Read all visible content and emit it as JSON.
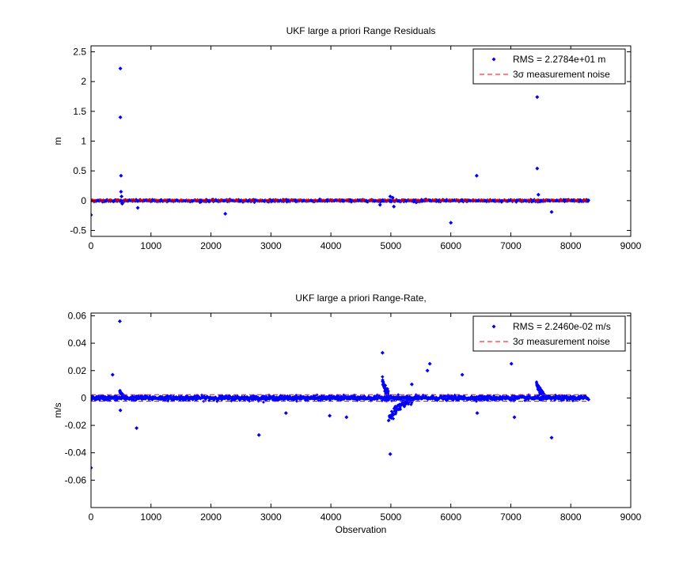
{
  "chart_data": [
    {
      "type": "scatter",
      "title": "UKF large a priori Range Residuals",
      "xlabel": "",
      "ylabel": "m",
      "xlim": [
        0,
        9000
      ],
      "ylim": [
        -0.6,
        2.6
      ],
      "xticks": [
        0,
        1000,
        2000,
        3000,
        4000,
        5000,
        6000,
        7000,
        8000,
        9000
      ],
      "xtick_labels": [
        "0",
        "1000",
        "2000",
        "3000",
        "4000",
        "5000",
        "6000",
        "7000",
        "8000",
        "9000"
      ],
      "yticks": [
        -0.5,
        0,
        0.5,
        1,
        1.5,
        2,
        2.5
      ],
      "ytick_labels": [
        "-0.5",
        "0",
        "0.5",
        "1",
        "1.5",
        "2",
        "2.5"
      ],
      "grid": false,
      "legend_position": "top-right",
      "n_points_approx": 8300,
      "series": [
        {
          "name": "RMS = 2.2784e+01 m",
          "kind": "points",
          "color": "#0000ff",
          "base_band": 0.02,
          "x_range": [
            0,
            8300
          ],
          "outliers": [
            {
              "x": 0,
              "y": -0.24
            },
            {
              "x": 490,
              "y": 2.22
            },
            {
              "x": 490,
              "y": 1.4
            },
            {
              "x": 500,
              "y": 0.42
            },
            {
              "x": 500,
              "y": 0.15
            },
            {
              "x": 510,
              "y": 0.07
            },
            {
              "x": 520,
              "y": -0.05
            },
            {
              "x": 780,
              "y": -0.12
            },
            {
              "x": 2240,
              "y": -0.22
            },
            {
              "x": 4820,
              "y": -0.07
            },
            {
              "x": 4990,
              "y": 0.07
            },
            {
              "x": 5030,
              "y": 0.05
            },
            {
              "x": 5050,
              "y": -0.1
            },
            {
              "x": 6000,
              "y": -0.37
            },
            {
              "x": 6430,
              "y": 0.42
            },
            {
              "x": 7440,
              "y": 1.74
            },
            {
              "x": 7440,
              "y": 0.54
            },
            {
              "x": 7460,
              "y": 0.1
            },
            {
              "x": 7680,
              "y": -0.19
            }
          ]
        },
        {
          "name": "3σ measurement noise",
          "kind": "dashed-lines",
          "color": "#ff0000",
          "bounds": [
            0.015,
            -0.015
          ],
          "x_range": [
            0,
            8300
          ]
        }
      ]
    },
    {
      "type": "scatter",
      "title": "UKF large a priori Range-Rate,",
      "xlabel": "Observation",
      "ylabel": "m/s",
      "xlim": [
        0,
        9000
      ],
      "ylim": [
        -0.08,
        0.062
      ],
      "xticks": [
        0,
        1000,
        2000,
        3000,
        4000,
        5000,
        6000,
        7000,
        8000,
        9000
      ],
      "xtick_labels": [
        "0",
        "1000",
        "2000",
        "3000",
        "4000",
        "5000",
        "6000",
        "7000",
        "8000",
        "9000"
      ],
      "yticks": [
        -0.06,
        -0.04,
        -0.02,
        0,
        0.02,
        0.04,
        0.06
      ],
      "ytick_labels": [
        "-0.06",
        "-0.04",
        "-0.02",
        "0",
        "0.02",
        "0.04",
        "0.06"
      ],
      "grid": false,
      "legend_position": "top-right",
      "n_points_approx": 8300,
      "series": [
        {
          "name": "RMS = 2.2460e-02 m/s",
          "kind": "points",
          "color": "#0000ff",
          "base_band": 0.0018,
          "x_range": [
            0,
            8300
          ],
          "outliers": [
            {
              "x": 0,
              "y": -0.051
            },
            {
              "x": 360,
              "y": 0.017
            },
            {
              "x": 480,
              "y": 0.056
            },
            {
              "x": 490,
              "y": -0.009
            },
            {
              "x": 760,
              "y": -0.022
            },
            {
              "x": 2800,
              "y": -0.027
            },
            {
              "x": 3250,
              "y": -0.011
            },
            {
              "x": 3980,
              "y": -0.013
            },
            {
              "x": 4260,
              "y": -0.014
            },
            {
              "x": 4860,
              "y": 0.033
            },
            {
              "x": 4990,
              "y": -0.041
            },
            {
              "x": 5350,
              "y": 0.01
            },
            {
              "x": 5610,
              "y": 0.02
            },
            {
              "x": 5650,
              "y": 0.025
            },
            {
              "x": 6190,
              "y": 0.017
            },
            {
              "x": 6440,
              "y": -0.011
            },
            {
              "x": 7010,
              "y": 0.025
            },
            {
              "x": 7060,
              "y": -0.014
            },
            {
              "x": 7680,
              "y": -0.029
            }
          ],
          "features": [
            {
              "shape": "spike-decay",
              "x_start": 4860,
              "x_end": 4960,
              "y_start": 0.015,
              "y_end": 0.003
            },
            {
              "shape": "spike-decay",
              "x_start": 4960,
              "x_end": 5350,
              "y_start": -0.018,
              "y_end": -0.001
            },
            {
              "shape": "spike-decay",
              "x_start": 7430,
              "x_end": 7560,
              "y_start": 0.012,
              "y_end": 0.002
            },
            {
              "shape": "spike-decay",
              "x_start": 480,
              "x_end": 560,
              "y_start": 0.006,
              "y_end": 0.001
            }
          ]
        },
        {
          "name": "3σ measurement noise",
          "kind": "dashed-lines",
          "color": "#ff0000",
          "bounds": [
            0.0024,
            -0.0024
          ],
          "x_range": [
            0,
            8300
          ]
        }
      ]
    }
  ]
}
